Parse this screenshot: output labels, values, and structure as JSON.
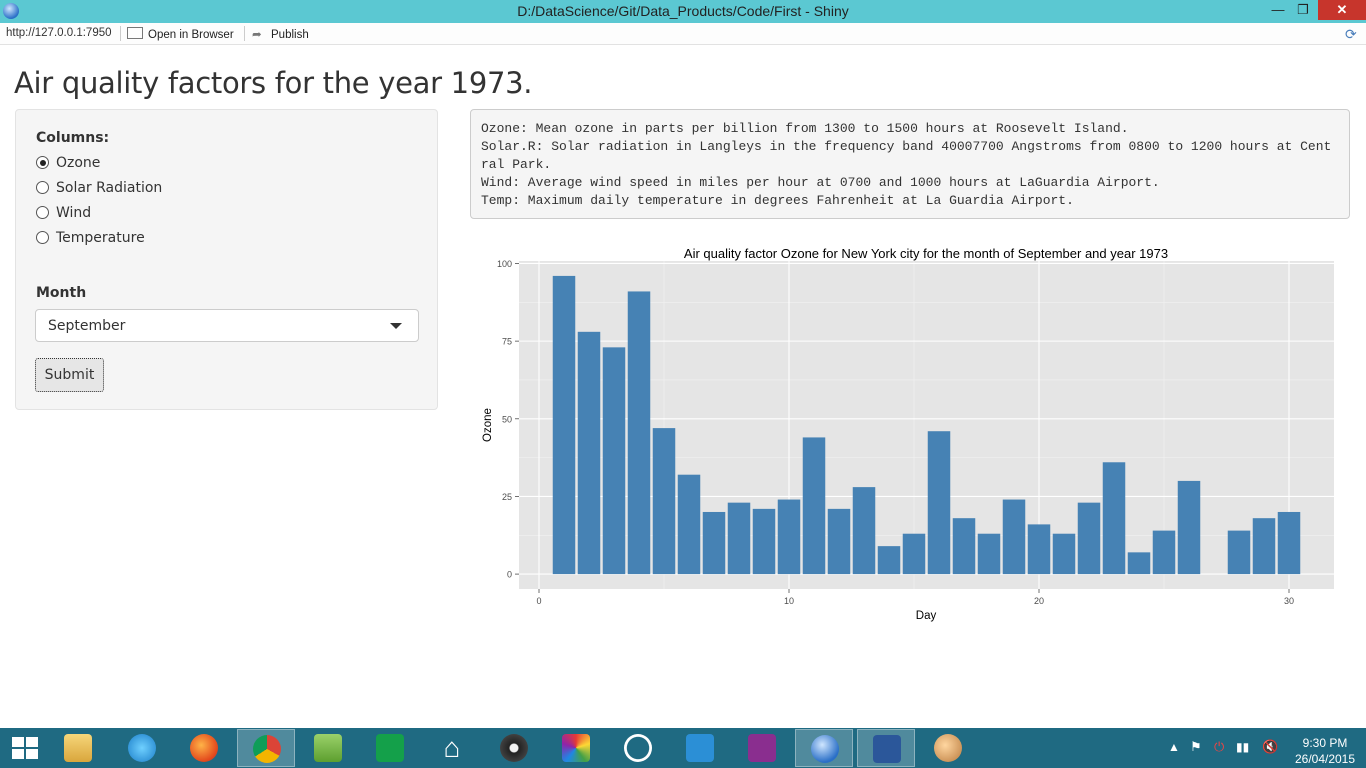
{
  "window": {
    "title": "D:/DataScience/Git/Data_Products/Code/First - Shiny",
    "minimize": "—",
    "maximize": "❐",
    "close": "✕"
  },
  "toolbar": {
    "url": "http://127.0.0.1:7950",
    "open_in_browser": "Open in Browser",
    "publish": "Publish"
  },
  "page": {
    "title": "Air quality factors for the year 1973."
  },
  "sidebar": {
    "columns_label": "Columns:",
    "options": [
      {
        "label": "Ozone",
        "selected": true
      },
      {
        "label": "Solar Radiation",
        "selected": false
      },
      {
        "label": "Wind",
        "selected": false
      },
      {
        "label": "Temperature",
        "selected": false
      }
    ],
    "month_label": "Month",
    "month_value": "September",
    "submit_label": "Submit"
  },
  "description": {
    "lines": [
      "Ozone: Mean ozone in parts per billion from 1300 to 1500 hours at Roosevelt Island.",
      "Solar.R: Solar radiation in Langleys in the frequency band 40007700 Angstroms from 0800 to 1200 hours at Central Park.",
      "Wind: Average wind speed in miles per hour at 0700 and 1000 hours at LaGuardia Airport.",
      "Temp: Maximum daily temperature in degrees Fahrenheit at La Guardia Airport."
    ]
  },
  "chart_data": {
    "type": "bar",
    "title": "Air quality factor  Ozone for New York city for the month of September and year 1973",
    "xlabel": "Day",
    "ylabel": "Ozone",
    "xlim": [
      -0.8,
      31.8
    ],
    "ylim": [
      -4.8,
      100.8
    ],
    "xticks": [
      0,
      10,
      20,
      30
    ],
    "yticks": [
      0,
      25,
      50,
      75,
      100
    ],
    "grid": true,
    "bar_color": "#4682b4",
    "panel_color": "#e5e5e5",
    "x": [
      1,
      2,
      3,
      4,
      5,
      6,
      7,
      8,
      9,
      10,
      11,
      12,
      13,
      14,
      15,
      16,
      17,
      18,
      19,
      20,
      21,
      22,
      23,
      24,
      25,
      26,
      27,
      28,
      29,
      30
    ],
    "values": [
      96,
      78,
      73,
      91,
      47,
      32,
      20,
      23,
      21,
      24,
      44,
      21,
      28,
      9,
      13,
      46,
      18,
      13,
      24,
      16,
      13,
      23,
      36,
      7,
      14,
      30,
      null,
      14,
      18,
      20
    ]
  },
  "taskbar": {
    "clock_time": "9:30 PM",
    "clock_date": "26/04/2015",
    "apps": [
      "file-explorer",
      "internet-explorer",
      "firefox",
      "chrome",
      "notepad-plus",
      "store",
      "home",
      "media-player",
      "paint",
      "hp",
      "screen-tool",
      "onenote",
      "rstudio",
      "word",
      "paint-palette"
    ]
  }
}
